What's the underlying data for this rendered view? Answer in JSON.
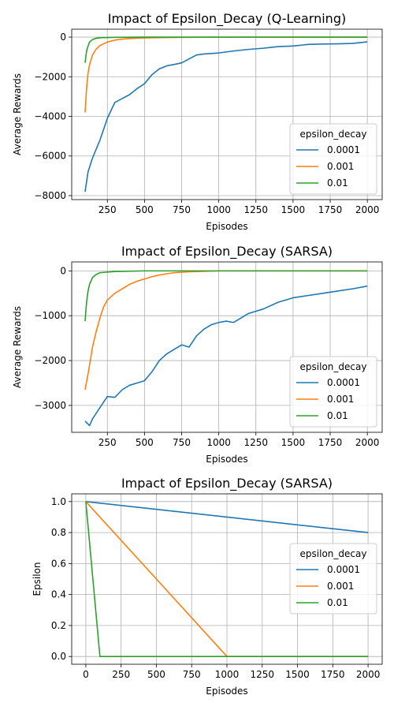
{
  "colors": {
    "0.0001": "#1f77b4",
    "0.001": "#ff7f0e",
    "0.01": "#2ca02c",
    "grid": "#b0b0b0"
  },
  "chart_data": [
    {
      "type": "line",
      "title": "Impact of Epsilon_Decay (Q-Learning)",
      "xlabel": "Episodes",
      "ylabel": "Average Rewards",
      "xlim": [
        10,
        2100
      ],
      "ylim": [
        -8200,
        400
      ],
      "xticks": [
        250,
        500,
        750,
        1000,
        1250,
        1500,
        1750,
        2000
      ],
      "yticks": [
        0,
        -2000,
        -4000,
        -6000,
        -8000
      ],
      "xtick_labels": [
        "250",
        "500",
        "750",
        "1000",
        "1250",
        "1500",
        "1750",
        "2000"
      ],
      "ytick_labels": [
        "0",
        "−2000",
        "−4000",
        "−6000",
        "−8000"
      ],
      "grid": true,
      "legend": {
        "title": "epsilon_decay",
        "position": "lower-right"
      },
      "series": [
        {
          "name": "0.0001",
          "x": [
            100,
            120,
            150,
            200,
            250,
            300,
            350,
            400,
            450,
            500,
            550,
            600,
            650,
            700,
            750,
            800,
            850,
            900,
            1000,
            1100,
            1200,
            1300,
            1400,
            1500,
            1600,
            1700,
            1800,
            1900,
            2000
          ],
          "y": [
            -7800,
            -6800,
            -6100,
            -5200,
            -4100,
            -3300,
            -3100,
            -2900,
            -2600,
            -2350,
            -1900,
            -1600,
            -1450,
            -1380,
            -1300,
            -1100,
            -900,
            -850,
            -800,
            -700,
            -620,
            -560,
            -480,
            -450,
            -370,
            -350,
            -340,
            -320,
            -240
          ]
        },
        {
          "name": "0.001",
          "x": [
            100,
            110,
            120,
            130,
            150,
            175,
            200,
            250,
            300,
            350,
            400,
            500,
            600,
            700,
            800,
            1000,
            1500,
            2000
          ],
          "y": [
            -3800,
            -2600,
            -1800,
            -1400,
            -900,
            -600,
            -420,
            -250,
            -150,
            -100,
            -70,
            -40,
            -25,
            -15,
            -10,
            -5,
            0,
            0
          ]
        },
        {
          "name": "0.01",
          "x": [
            100,
            110,
            120,
            130,
            150,
            175,
            200,
            300,
            500,
            1000,
            2000
          ],
          "y": [
            -1300,
            -700,
            -450,
            -250,
            -120,
            -60,
            -30,
            -10,
            0,
            0,
            0
          ]
        }
      ]
    },
    {
      "type": "line",
      "title": "Impact of Epsilon_Decay (SARSA)",
      "xlabel": "Episodes",
      "ylabel": "Average Rewards",
      "xlim": [
        10,
        2100
      ],
      "ylim": [
        -3600,
        200
      ],
      "xticks": [
        250,
        500,
        750,
        1000,
        1250,
        1500,
        1750,
        2000
      ],
      "yticks": [
        0,
        -1000,
        -2000,
        -3000
      ],
      "xtick_labels": [
        "250",
        "500",
        "750",
        "1000",
        "1250",
        "1500",
        "1750",
        "2000"
      ],
      "ytick_labels": [
        "0",
        "−1000",
        "−2000",
        "−3000"
      ],
      "grid": true,
      "legend": {
        "title": "epsilon_decay",
        "position": "lower-right"
      },
      "series": [
        {
          "name": "0.0001",
          "x": [
            100,
            130,
            150,
            200,
            250,
            300,
            350,
            400,
            450,
            500,
            550,
            600,
            650,
            700,
            750,
            800,
            850,
            900,
            950,
            1000,
            1050,
            1100,
            1150,
            1200,
            1300,
            1400,
            1500,
            1600,
            1700,
            1800,
            1900,
            2000
          ],
          "y": [
            -3350,
            -3450,
            -3300,
            -3050,
            -2800,
            -2820,
            -2650,
            -2550,
            -2500,
            -2450,
            -2250,
            -2000,
            -1850,
            -1750,
            -1650,
            -1700,
            -1450,
            -1300,
            -1200,
            -1150,
            -1120,
            -1150,
            -1050,
            -950,
            -850,
            -700,
            -600,
            -550,
            -500,
            -450,
            -400,
            -340
          ]
        },
        {
          "name": "0.001",
          "x": [
            100,
            120,
            150,
            175,
            200,
            225,
            250,
            300,
            350,
            400,
            450,
            500,
            550,
            600,
            700,
            800,
            1000,
            1500,
            2000
          ],
          "y": [
            -2650,
            -2300,
            -1700,
            -1350,
            -1050,
            -800,
            -650,
            -500,
            -400,
            -300,
            -230,
            -180,
            -130,
            -90,
            -40,
            -20,
            0,
            0,
            0
          ]
        },
        {
          "name": "0.01",
          "x": [
            100,
            110,
            120,
            130,
            150,
            175,
            200,
            300,
            500,
            1000,
            2000
          ],
          "y": [
            -1120,
            -700,
            -450,
            -300,
            -150,
            -80,
            -40,
            -15,
            0,
            0,
            0
          ]
        }
      ]
    },
    {
      "type": "line",
      "title": "Impact of Epsilon_Decay (SARSA)",
      "xlabel": "Episodes",
      "ylabel": "Epsilon",
      "xlim": [
        -100,
        2100
      ],
      "ylim": [
        -0.05,
        1.05
      ],
      "xticks": [
        0,
        250,
        500,
        750,
        1000,
        1250,
        1500,
        1750,
        2000
      ],
      "yticks": [
        0.0,
        0.2,
        0.4,
        0.6,
        0.8,
        1.0
      ],
      "xtick_labels": [
        "0",
        "250",
        "500",
        "750",
        "1000",
        "1250",
        "1500",
        "1750",
        "2000"
      ],
      "ytick_labels": [
        "0.0",
        "0.2",
        "0.4",
        "0.6",
        "0.8",
        "1.0"
      ],
      "grid": true,
      "legend": {
        "title": "epsilon_decay",
        "position": "center-right"
      },
      "series": [
        {
          "name": "0.0001",
          "x": [
            0,
            2000
          ],
          "y": [
            1.0,
            0.8
          ]
        },
        {
          "name": "0.001",
          "x": [
            0,
            1000,
            2000
          ],
          "y": [
            1.0,
            0.0,
            0.0
          ]
        },
        {
          "name": "0.01",
          "x": [
            0,
            100,
            2000
          ],
          "y": [
            1.0,
            0.0,
            0.0
          ]
        }
      ]
    }
  ]
}
